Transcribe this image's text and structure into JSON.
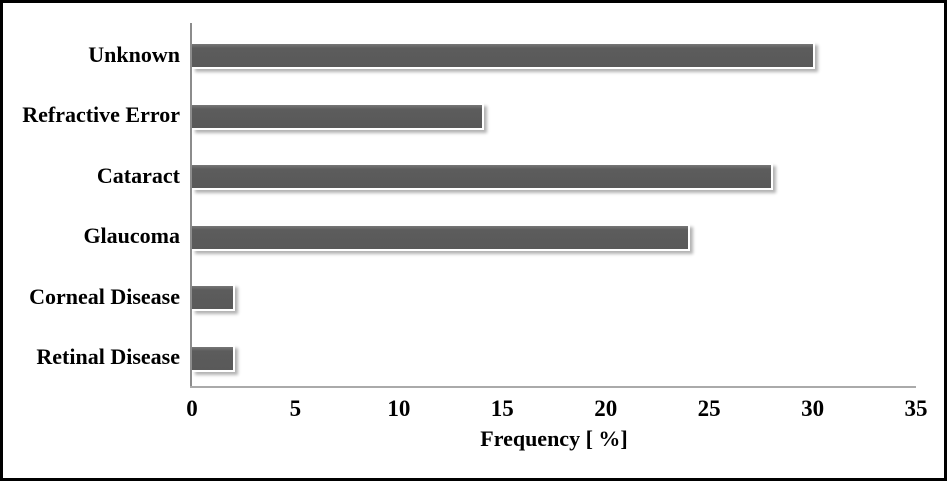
{
  "chart_data": {
    "type": "bar",
    "orientation": "horizontal",
    "title": "",
    "categories": [
      "Unknown",
      "Refractive Error",
      "Cataract",
      "Glaucoma",
      "Corneal Disease",
      "Retinal Disease"
    ],
    "values": [
      30,
      14,
      28,
      24,
      2,
      2
    ],
    "xlabel": "Frequency [ %]",
    "ylabel": "",
    "x_ticks": [
      0,
      5,
      10,
      15,
      20,
      25,
      30,
      35
    ],
    "xlim": [
      0,
      35
    ],
    "grid": false,
    "legend": null,
    "bar_color": "#595959",
    "axis_line_color": "#8c8c8c",
    "text_color": "#000000",
    "background_color": "#ffffff",
    "frame_border_color": "#000000"
  }
}
